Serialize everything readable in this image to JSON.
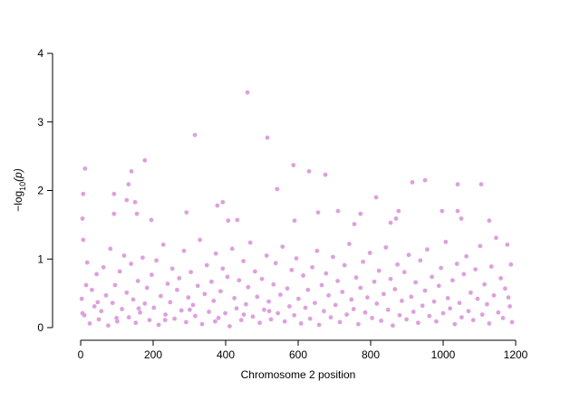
{
  "chart_data": {
    "type": "scatter",
    "xlabel": "Chromosome 2 position",
    "ylabel": {
      "prefix": "−log",
      "sub": "10",
      "suffix": "(p)"
    },
    "color": "#dda0dd",
    "xlim": [
      0,
      1200
    ],
    "xticks": [
      0,
      200,
      400,
      600,
      800,
      1000,
      1200
    ],
    "ylim": [
      0,
      4
    ],
    "yticks": [
      0,
      1,
      2,
      3,
      4
    ],
    "x": [
      3,
      10,
      18,
      25,
      31,
      38,
      44,
      50,
      57,
      63,
      70,
      76,
      82,
      88,
      95,
      101,
      108,
      114,
      120,
      127,
      133,
      139,
      145,
      152,
      158,
      164,
      171,
      177,
      183,
      190,
      196,
      202,
      209,
      215,
      221,
      228,
      234,
      240,
      247,
      253,
      259,
      266,
      272,
      278,
      285,
      291,
      297,
      304,
      310,
      316,
      323,
      329,
      335,
      342,
      348,
      354,
      361,
      367,
      373,
      380,
      386,
      392,
      399,
      405,
      411,
      418,
      424,
      430,
      437,
      443,
      449,
      456,
      462,
      468,
      475,
      481,
      487,
      494,
      500,
      506,
      513,
      519,
      525,
      532,
      538,
      544,
      551,
      557,
      563,
      570,
      576,
      582,
      589,
      595,
      601,
      608,
      614,
      620,
      627,
      633,
      639,
      646,
      652,
      658,
      665,
      671,
      677,
      684,
      690,
      696,
      703,
      709,
      715,
      722,
      728,
      734,
      741,
      747,
      753,
      760,
      766,
      772,
      779,
      785,
      791,
      798,
      804,
      810,
      817,
      823,
      829,
      836,
      842,
      848,
      855,
      861,
      867,
      874,
      880,
      886,
      893,
      899,
      905,
      912,
      918,
      924,
      931,
      937,
      943,
      950,
      956,
      962,
      969,
      975,
      981,
      988,
      994,
      1000,
      1007,
      1013,
      1019,
      1026,
      1032,
      1038,
      1045,
      1051,
      1057,
      1064,
      1070,
      1076,
      1083,
      1089,
      1095,
      1102,
      1108,
      1114,
      1121,
      1127,
      1133,
      1140,
      1146,
      1152,
      1159,
      1165,
      1171,
      1177,
      1184,
      1190,
      1187,
      1180,
      5,
      15,
      47,
      99,
      160,
      233,
      301,
      371,
      450,
      520,
      7,
      5,
      7,
      12,
      315,
      460,
      515,
      177,
      587,
      630,
      675,
      140,
      542,
      950,
      915,
      1040,
      1105,
      92,
      132,
      127,
      150,
      392,
      377,
      815,
      155,
      292,
      92,
      195,
      407,
      432,
      590,
      655,
      710,
      772,
      870,
      877,
      997,
      1050,
      1127,
      755,
      855,
      1040
    ],
    "y": [
      0.42,
      0.18,
      0.95,
      0.06,
      0.55,
      0.31,
      0.78,
      0.12,
      0.24,
      0.88,
      0.47,
      0.03,
      1.15,
      0.36,
      0.62,
      0.09,
      0.82,
      0.27,
      1.05,
      0.51,
      0.15,
      0.93,
      0.41,
      0.07,
      0.68,
      0.22,
      1.02,
      0.35,
      0.58,
      0.11,
      0.77,
      0.29,
      0.98,
      0.04,
      0.46,
      1.21,
      0.19,
      0.64,
      0.37,
      0.86,
      0.13,
      0.55,
      0.72,
      0.25,
      1.12,
      0.08,
      0.44,
      0.81,
      0.33,
      0.17,
      0.61,
      1.28,
      0.05,
      0.49,
      0.91,
      0.23,
      0.67,
      0.39,
      1.08,
      0.14,
      0.53,
      0.86,
      0.21,
      0.74,
      0.02,
      1.15,
      0.43,
      0.28,
      0.69,
      0.11,
      0.97,
      0.34,
      0.59,
      1.24,
      0.16,
      0.82,
      0.45,
      0.07,
      0.71,
      0.26,
      1.05,
      0.38,
      0.12,
      0.63,
      0.94,
      0.21,
      0.48,
      1.18,
      0.09,
      0.57,
      0.31,
      0.84,
      0.18,
      1.01,
      0.42,
      0.06,
      0.76,
      0.29,
      0.55,
      0.13,
      0.88,
      0.36,
      1.12,
      0.04,
      0.62,
      0.24,
      0.79,
      0.47,
      0.15,
      1.03,
      0.33,
      0.68,
      0.08,
      0.52,
      0.91,
      0.19,
      1.22,
      0.41,
      0.27,
      0.73,
      0.05,
      0.58,
      0.96,
      0.22,
      0.44,
      1.09,
      0.14,
      0.67,
      0.35,
      0.83,
      0.1,
      0.49,
      1.17,
      0.26,
      0.71,
      0.03,
      0.56,
      0.92,
      0.18,
      0.39,
      0.81,
      0.12,
      1.06,
      0.45,
      0.23,
      0.66,
      0.07,
      0.98,
      0.32,
      0.54,
      1.14,
      0.17,
      0.74,
      0.38,
      0.09,
      0.61,
      0.87,
      0.21,
      1.25,
      0.43,
      0.28,
      0.69,
      0.05,
      0.93,
      0.36,
      0.15,
      0.78,
      1.04,
      0.24,
      0.51,
      0.11,
      0.85,
      0.42,
      1.19,
      0.19,
      0.63,
      0.34,
      0.06,
      0.89,
      0.47,
      1.31,
      0.22,
      0.72,
      0.14,
      0.57,
      1.21,
      0.31,
      0.08,
      0.92,
      0.44,
      0.21,
      0.62,
      0.37,
      0.14,
      0.28,
      0.11,
      0.26,
      0.09,
      0.19,
      0.24,
      1.28,
      1.59,
      1.95,
      2.32,
      2.81,
      3.43,
      2.77,
      2.44,
      2.37,
      2.28,
      2.23,
      2.28,
      2.02,
      2.15,
      2.12,
      2.09,
      2.09,
      1.95,
      2.09,
      1.86,
      1.83,
      1.83,
      1.78,
      1.9,
      1.66,
      1.68,
      1.66,
      1.57,
      1.56,
      1.57,
      1.56,
      1.68,
      1.7,
      1.66,
      1.59,
      1.7,
      1.7,
      1.59,
      1.56,
      1.51,
      1.53,
      1.7
    ]
  }
}
